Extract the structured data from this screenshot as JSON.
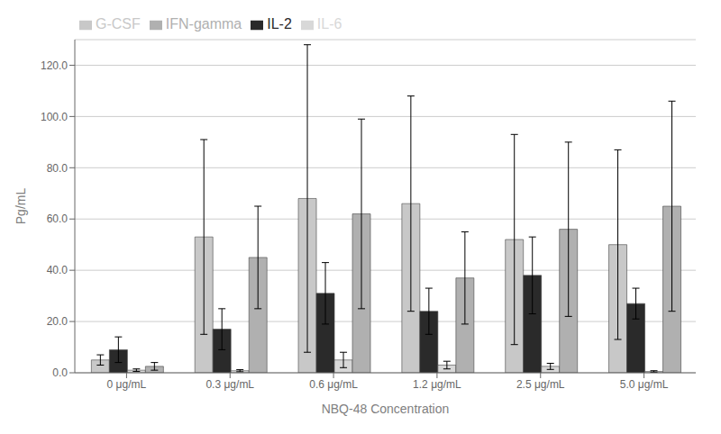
{
  "chart_data": {
    "type": "bar",
    "xlabel": "NBQ-48 Concentration",
    "ylabel": "Pg/mL",
    "categories": [
      "0 μg/mL",
      "0.3 μg/mL",
      "0.6 μg/mL",
      "1.2 μg/mL",
      "2.5 μg/mL",
      "5.0 μg/mL"
    ],
    "series": [
      {
        "name": "G-CSF",
        "color": "#c8c8c8",
        "values": [
          5.0,
          53.0,
          68.0,
          66.0,
          52.0,
          50.0
        ],
        "errors": [
          2.0,
          38.0,
          60.0,
          42.0,
          41.0,
          37.0
        ]
      },
      {
        "name": "IL-2",
        "color": "#2a2a2a",
        "values": [
          9.0,
          17.0,
          31.0,
          24.0,
          38.0,
          27.0
        ],
        "errors": [
          5.0,
          8.0,
          12.0,
          9.0,
          15.0,
          6.0
        ]
      },
      {
        "name": "IL-6",
        "color": "#d8d8d8",
        "values": [
          1.0,
          0.8,
          5.0,
          3.0,
          2.5,
          0.5
        ],
        "errors": [
          0.5,
          0.4,
          3.0,
          1.5,
          1.2,
          0.3
        ]
      },
      {
        "name": "IFN-gamma",
        "color": "#b0b0b0",
        "values": [
          2.5,
          45.0,
          62.0,
          37.0,
          56.0,
          65.0
        ],
        "errors": [
          1.5,
          20.0,
          37.0,
          18.0,
          34.0,
          41.0
        ]
      }
    ],
    "ylim": [
      0,
      130
    ],
    "yticks": [
      {
        "value": 0,
        "label": "0.0"
      },
      {
        "value": 20,
        "label": "20.0"
      },
      {
        "value": 40,
        "label": "40.0"
      },
      {
        "value": 60,
        "label": "60.0"
      },
      {
        "value": 80,
        "label": "80.0"
      },
      {
        "value": 100,
        "label": "100.0"
      },
      {
        "value": 120,
        "label": "120.0"
      }
    ],
    "grid": true,
    "legend": "upper left"
  }
}
